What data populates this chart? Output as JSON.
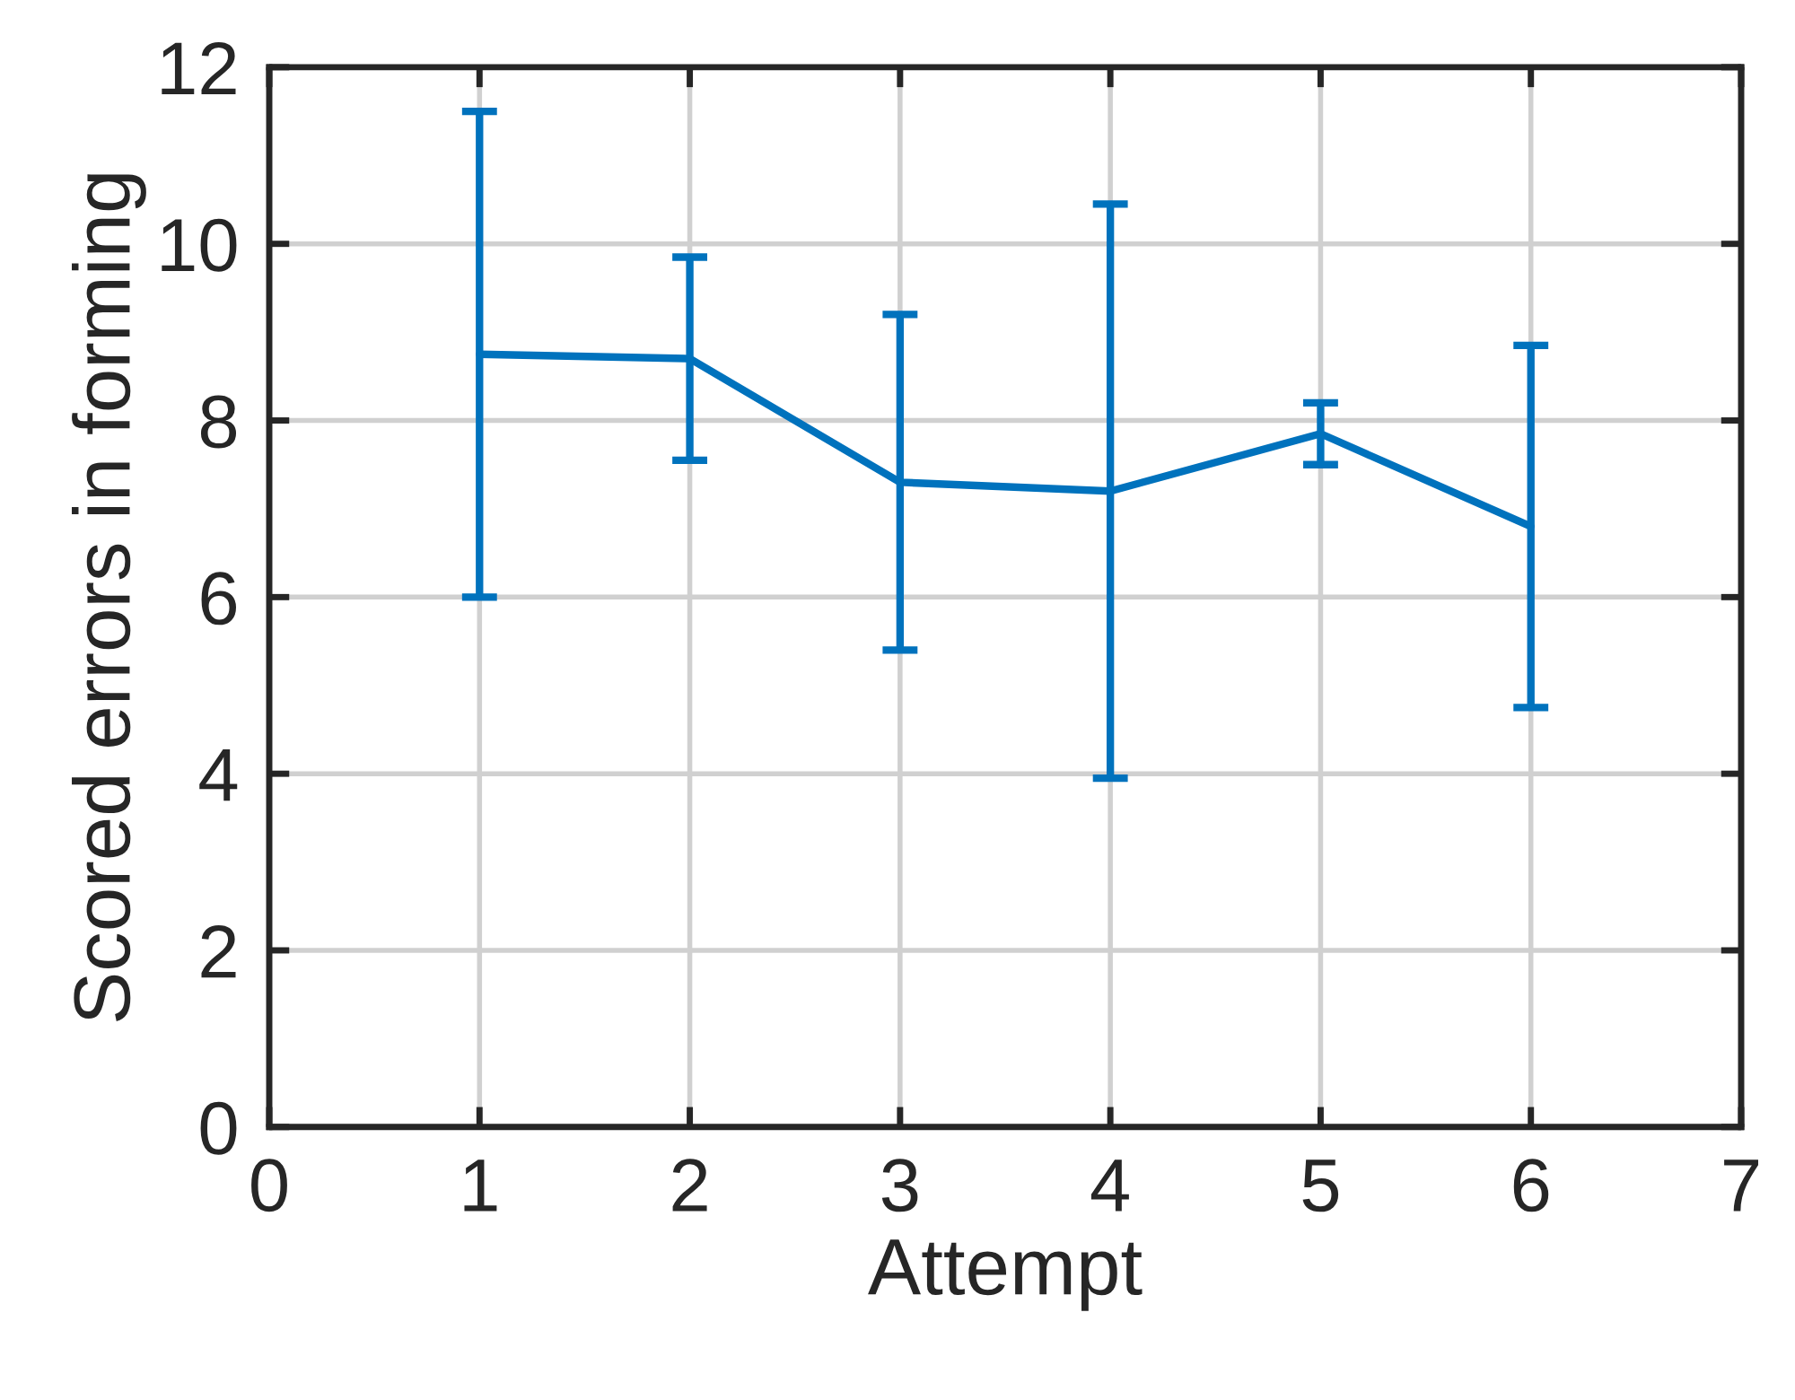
{
  "chart_data": {
    "type": "line",
    "xlabel": "Attempt",
    "ylabel": "Scored errors in forming",
    "x": [
      1,
      2,
      3,
      4,
      5,
      6
    ],
    "series": [
      {
        "color": "#0072bd",
        "values": [
          8.75,
          8.7,
          7.3,
          7.2,
          7.85,
          6.8
        ],
        "errors": [
          2.75,
          1.15,
          1.9,
          3.25,
          0.35,
          2.05
        ]
      }
    ],
    "xlim": [
      0,
      7
    ],
    "xticks": [
      0,
      1,
      2,
      3,
      4,
      5,
      6,
      7
    ],
    "ylim": [
      0,
      12
    ],
    "yticks": [
      0,
      2,
      4,
      6,
      8,
      10,
      12
    ],
    "grid": true,
    "marker": "none",
    "line_style": "solid"
  }
}
